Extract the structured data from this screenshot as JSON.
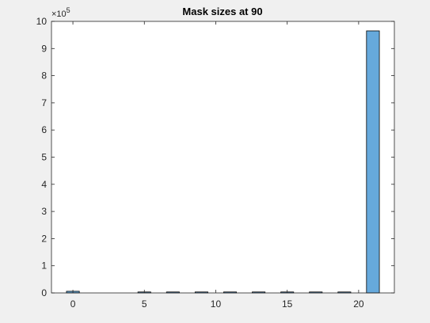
{
  "chart_data": {
    "type": "bar",
    "title": "Mask sizes at 90",
    "xlabel": "",
    "ylabel": "",
    "y_exponent_label": "×10",
    "y_exponent_power": "5",
    "y_exponent": 5,
    "xlim": [
      -1.5,
      22.5
    ],
    "ylim": [
      0,
      1000000
    ],
    "x_ticks": [
      0,
      5,
      10,
      15,
      20
    ],
    "x_tick_labels": [
      "0",
      "5",
      "10",
      "15",
      "20"
    ],
    "y_ticks": [
      0,
      100000,
      200000,
      300000,
      400000,
      500000,
      600000,
      700000,
      800000,
      900000,
      1000000
    ],
    "y_tick_labels": [
      "0",
      "1",
      "2",
      "3",
      "4",
      "5",
      "6",
      "7",
      "8",
      "9",
      "10"
    ],
    "bar_width": 1,
    "x": [
      0,
      1,
      2,
      3,
      4,
      5,
      6,
      7,
      8,
      9,
      10,
      11,
      12,
      13,
      14,
      15,
      16,
      17,
      18,
      19,
      20,
      21
    ],
    "values": [
      6000,
      0,
      0,
      0,
      0,
      3000,
      0,
      2000,
      0,
      2000,
      0,
      2000,
      0,
      2000,
      0,
      2000,
      0,
      2000,
      0,
      2000,
      0,
      965000
    ],
    "bar_color": "#66a9dc",
    "bar_edge_color": "#000000",
    "grid": false,
    "box": true
  }
}
